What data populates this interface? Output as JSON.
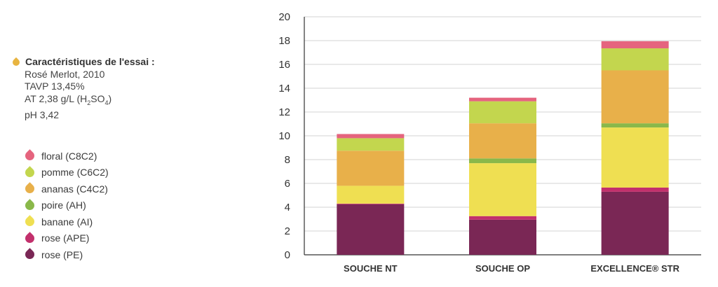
{
  "info": {
    "title": "Caractéristiques de l'essai :",
    "line1": "Rosé Merlot, 2010",
    "line2": "TAVP 13,45%",
    "line3_prefix": "AT 2,38 g/L (H",
    "line3_sub1": "2",
    "line3_mid": "SO",
    "line3_sub2": "4",
    "line3_suffix": ")",
    "line4": "pH 3,42",
    "bullet_color": "#e8b440"
  },
  "chart_data": {
    "type": "bar",
    "stacked": true,
    "categories": [
      "SOUCHE NT",
      "SOUCHE OP",
      "EXCELLENCE® STR"
    ],
    "ylim": [
      0,
      20
    ],
    "yticks": [
      0,
      2,
      4,
      6,
      8,
      10,
      12,
      14,
      16,
      18,
      20
    ],
    "grid": true,
    "series": [
      {
        "name": "rose (PE)",
        "color": "#7a2755",
        "values": [
          4.25,
          2.95,
          5.3
        ]
      },
      {
        "name": "rose (APE)",
        "color": "#c2306c",
        "values": [
          0.05,
          0.3,
          0.35
        ]
      },
      {
        "name": "banane (AI)",
        "color": "#efdf52",
        "values": [
          1.5,
          4.45,
          5.05
        ]
      },
      {
        "name": "poire (AH)",
        "color": "#8ab84a",
        "values": [
          0.0,
          0.4,
          0.35
        ]
      },
      {
        "name": "ananas (C4C2)",
        "color": "#e8b04a",
        "values": [
          2.95,
          2.95,
          4.45
        ]
      },
      {
        "name": "pomme (C6C2)",
        "color": "#c3d64e",
        "values": [
          1.05,
          1.85,
          1.85
        ]
      },
      {
        "name": "floral (C8C2)",
        "color": "#e5647e",
        "values": [
          0.35,
          0.3,
          0.6
        ]
      }
    ]
  },
  "legend": [
    {
      "label": "floral (C8C2)",
      "color": "#e5647e"
    },
    {
      "label": "pomme (C6C2)",
      "color": "#c3d64e"
    },
    {
      "label": "ananas (C4C2)",
      "color": "#e8b04a"
    },
    {
      "label": "poire (AH)",
      "color": "#8ab84a"
    },
    {
      "label": "banane (AI)",
      "color": "#efdf52"
    },
    {
      "label": "rose (APE)",
      "color": "#c2306c"
    },
    {
      "label": "rose (PE)",
      "color": "#7a2755"
    }
  ]
}
